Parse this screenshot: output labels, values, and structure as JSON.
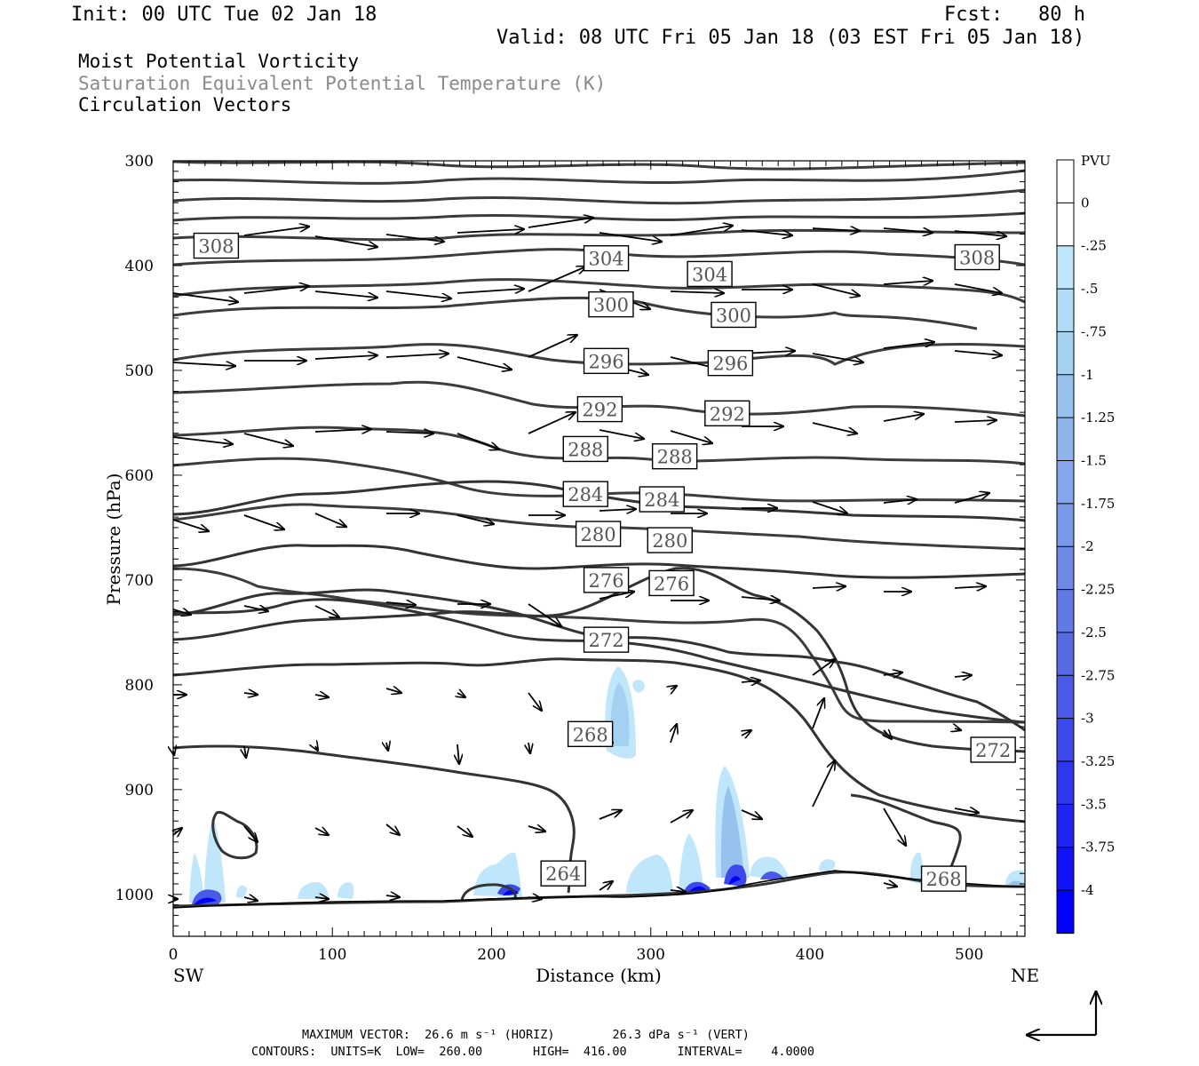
{
  "header": {
    "init": "Init: 00 UTC Tue 02 Jan 18",
    "fcst": "Fcst:   80 h",
    "valid": "Valid: 08 UTC Fri 05 Jan 18 (03 EST Fri 05 Jan 18)",
    "field1": "Moist Potential Vorticity",
    "field2": "Saturation Equivalent Potential Temperature (K)",
    "field3": "Circulation Vectors"
  },
  "footer": {
    "max_vector": "MAXIMUM VECTOR:  26.6 m s⁻¹ (HORIZ)        26.3 dPa s⁻¹ (VERT)",
    "contours": "CONTOURS:  UNITS=K  LOW=  260.00       HIGH=  416.00       INTERVAL=    4.0000"
  },
  "colors": {
    "contour": "#3c3c3c",
    "cb_light": "#bfe6fb",
    "cb_dark": "#0000ff"
  },
  "chart_data": {
    "type": "cross-section",
    "title": "Moist Potential Vorticity",
    "xlabel": "Distance (km)",
    "ylabel": "Pressure (hPa)",
    "x_left_label": "SW",
    "x_right_label": "NE",
    "xlim": [
      0,
      535
    ],
    "ylim": [
      1040,
      300
    ],
    "x_ticks": [
      0,
      100,
      200,
      300,
      400,
      500
    ],
    "y_ticks": [
      300,
      400,
      500,
      600,
      700,
      800,
      900,
      1000
    ],
    "colorbar": {
      "unit": "PVU",
      "ticks": [
        "0",
        "-.25",
        "-.5",
        "-.75",
        "-1",
        "-1.25",
        "-1.5",
        "-1.75",
        "-2",
        "-2.25",
        "-2.5",
        "-2.75",
        "-3",
        "-3.25",
        "-3.5",
        "-3.75",
        "-4"
      ],
      "colors": [
        "#ffffff",
        "#ffffff",
        "#bfe6fb",
        "#b0dcf6",
        "#a4d0f2",
        "#98c2ee",
        "#8eb4ec",
        "#84a6ea",
        "#7a98e8",
        "#6e89e6",
        "#627ae4",
        "#566ae2",
        "#4a5ae6",
        "#3c48ea",
        "#2e36ee",
        "#2024f2",
        "#1212f8",
        "#0000ff"
      ]
    },
    "contour_labels": [
      {
        "value": "308",
        "x": 27,
        "p": 381
      },
      {
        "value": "304",
        "x": 272,
        "p": 393
      },
      {
        "value": "304",
        "x": 337,
        "p": 408
      },
      {
        "value": "308",
        "x": 505,
        "p": 392
      },
      {
        "value": "300",
        "x": 275,
        "p": 437
      },
      {
        "value": "300",
        "x": 352,
        "p": 447
      },
      {
        "value": "296",
        "x": 272,
        "p": 491
      },
      {
        "value": "296",
        "x": 350,
        "p": 493
      },
      {
        "value": "292",
        "x": 268,
        "p": 537
      },
      {
        "value": "292",
        "x": 348,
        "p": 541
      },
      {
        "value": "288",
        "x": 259,
        "p": 575
      },
      {
        "value": "288",
        "x": 315,
        "p": 582
      },
      {
        "value": "284",
        "x": 259,
        "p": 618
      },
      {
        "value": "284",
        "x": 307,
        "p": 623
      },
      {
        "value": "280",
        "x": 267,
        "p": 656
      },
      {
        "value": "280",
        "x": 312,
        "p": 662
      },
      {
        "value": "276",
        "x": 272,
        "p": 700
      },
      {
        "value": "276",
        "x": 313,
        "p": 703
      },
      {
        "value": "272",
        "x": 272,
        "p": 757
      },
      {
        "value": "272",
        "x": 515,
        "p": 862
      },
      {
        "value": "268",
        "x": 262,
        "p": 847
      },
      {
        "value": "264",
        "x": 245,
        "p": 980
      },
      {
        "value": "268",
        "x": 484,
        "p": 985
      }
    ]
  }
}
